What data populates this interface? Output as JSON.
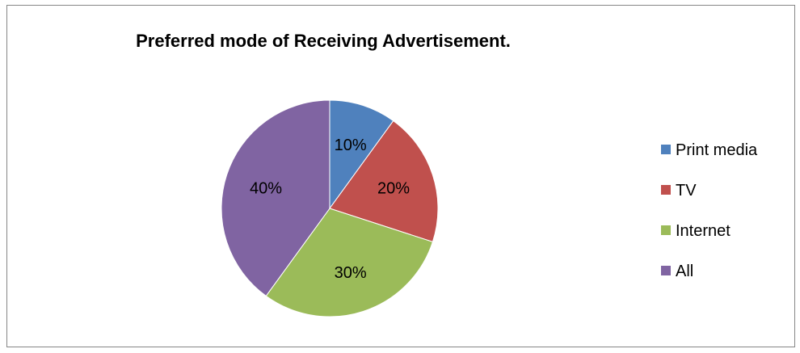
{
  "chart_data": {
    "type": "pie",
    "title": "Preferred mode of Receiving Advertisement.",
    "categories": [
      "Print media",
      "TV",
      "Internet",
      "All"
    ],
    "values": [
      10,
      20,
      30,
      40
    ],
    "labels": [
      "10%",
      "20%",
      "30%",
      "40%"
    ],
    "colors": [
      "#4F81BD",
      "#C0504D",
      "#9BBB59",
      "#8064A2"
    ],
    "legend_position": "right"
  }
}
